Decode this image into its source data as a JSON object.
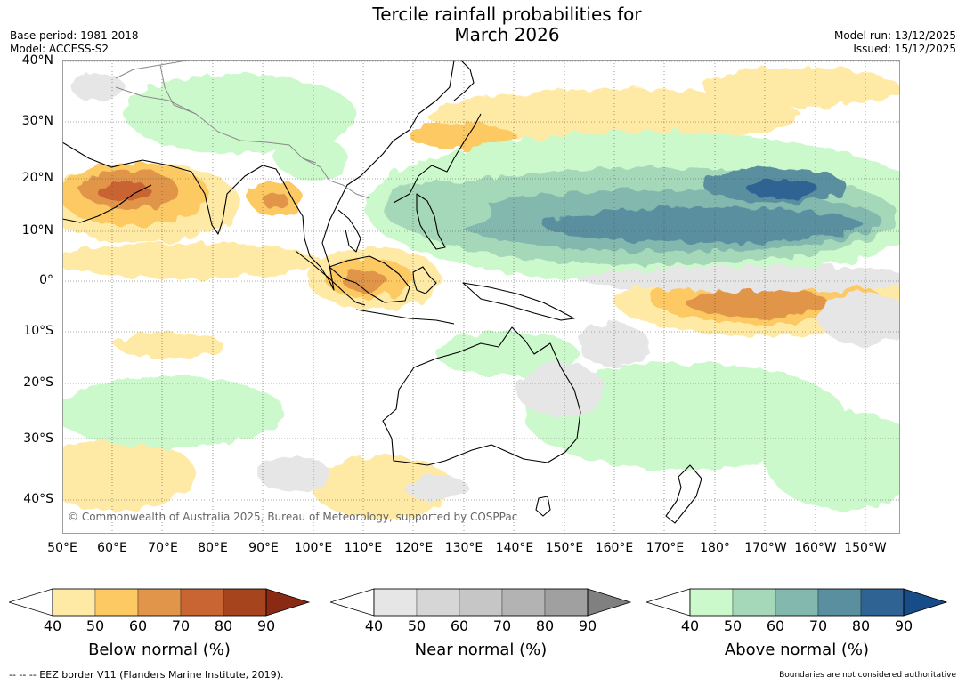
{
  "title": {
    "line1": "Tercile rainfall probabilities for",
    "line2": "March 2026"
  },
  "meta": {
    "base_period": "Base period: 1981-2018",
    "model": "Model: ACCESS-S2",
    "model_run": "Model run: 13/12/2025",
    "issued": "Issued: 15/12/2025"
  },
  "map": {
    "lat_labels": [
      "40°N",
      "30°N",
      "20°N",
      "10°N",
      "0°",
      "10°S",
      "20°S",
      "30°S",
      "40°S"
    ],
    "lon_labels": [
      "50°E",
      "60°E",
      "70°E",
      "80°E",
      "90°E",
      "100°E",
      "110°E",
      "120°E",
      "130°E",
      "140°E",
      "150°E",
      "160°E",
      "170°E",
      "180°",
      "170°W",
      "160°W",
      "150°W"
    ],
    "copyright": "© Commonwealth of Australia 2025, Bureau of Meteorology, supported by COSPPac"
  },
  "colorbars": {
    "below": {
      "label": "Below normal (%)",
      "ticks": [
        "40",
        "50",
        "60",
        "70",
        "80",
        "90"
      ],
      "colors": [
        "#ffeaa5",
        "#fcc963",
        "#e0954a",
        "#c96433",
        "#a6441e",
        "#8a2a15"
      ]
    },
    "near": {
      "label": "Near normal (%)",
      "ticks": [
        "40",
        "50",
        "60",
        "70",
        "80",
        "90"
      ],
      "colors": [
        "#e6e6e6",
        "#d6d6d6",
        "#c6c6c6",
        "#b3b3b3",
        "#a0a0a0",
        "#808080"
      ]
    },
    "above": {
      "label": "Above normal (%)",
      "ticks": [
        "40",
        "50",
        "60",
        "70",
        "80",
        "90"
      ],
      "colors": [
        "#ccf9cc",
        "#a5d8b8",
        "#82b8ae",
        "#5a8fa0",
        "#2f6394",
        "#164c88"
      ]
    }
  },
  "footer": {
    "eez": "--  --  -- EEZ border V11 (Flanders Marine Institute, 2019).",
    "disclaimer": "Boundaries are not considered authoritative"
  }
}
